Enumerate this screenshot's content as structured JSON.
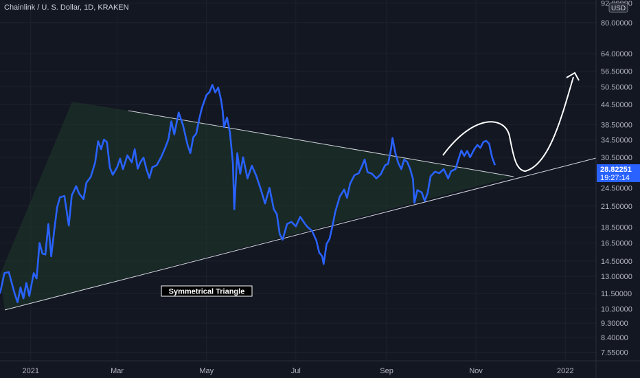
{
  "header": {
    "title": "Chainlink / U. S. Dollar, 1D, KRAKEN"
  },
  "colors": {
    "background": "#131722",
    "grid": "#1e222d",
    "series": "#2962ff",
    "trendline": "#d1d4dc",
    "triangle_fill": "#1f3a2a",
    "price_label_bg": "#2962ff"
  },
  "chart_data": {
    "type": "line",
    "symbol": "Chainlink / U. S. Dollar",
    "interval": "1D",
    "exchange": "KRAKEN",
    "currency_badge": "USD",
    "y_scale": "log",
    "ylim": [
      7.1,
      94
    ],
    "xlim": [
      "2020-12-11",
      "2022-01-22"
    ],
    "y_ticks": [
      "92.00000",
      "80.00000",
      "64.00000",
      "56.50000",
      "50.50000",
      "44.50000",
      "38.50000",
      "34.50000",
      "30.50000",
      "24.50000",
      "21.50000",
      "18.50000",
      "16.50000",
      "14.50000",
      "13.00000",
      "11.50000",
      "10.30000",
      "9.30000",
      "8.40000",
      "7.55000"
    ],
    "x_ticks": [
      {
        "label": "2021",
        "date": "2021-01-01"
      },
      {
        "label": "Mar",
        "date": "2021-03-01"
      },
      {
        "label": "May",
        "date": "2021-05-01"
      },
      {
        "label": "Jul",
        "date": "2021-07-01"
      },
      {
        "label": "Sep",
        "date": "2021-09-01"
      },
      {
        "label": "Nov",
        "date": "2021-11-01"
      },
      {
        "label": "2022",
        "date": "2022-01-01"
      }
    ],
    "last_price": "28.82251",
    "countdown": "19:27:14",
    "annotation": "Symmetrical Triangle",
    "series": [
      {
        "points": [
          [
            "2020-12-11",
            11.5
          ],
          [
            "2020-12-14",
            13.3
          ],
          [
            "2020-12-17",
            13.4
          ],
          [
            "2020-12-19",
            12.4
          ],
          [
            "2020-12-21",
            11.5
          ],
          [
            "2020-12-23",
            10.8
          ],
          [
            "2020-12-25",
            12.0
          ],
          [
            "2020-12-27",
            11.1
          ],
          [
            "2020-12-29",
            12.4
          ],
          [
            "2020-12-31",
            11.3
          ],
          [
            "2021-01-03",
            13.3
          ],
          [
            "2021-01-05",
            12.8
          ],
          [
            "2021-01-07",
            16.5
          ],
          [
            "2021-01-09",
            15.3
          ],
          [
            "2021-01-11",
            15.2
          ],
          [
            "2021-01-13",
            18.9
          ],
          [
            "2021-01-15",
            15.0
          ],
          [
            "2021-01-17",
            18.0
          ],
          [
            "2021-01-19",
            21.3
          ],
          [
            "2021-01-21",
            22.9
          ],
          [
            "2021-01-24",
            23.1
          ],
          [
            "2021-01-27",
            18.7
          ],
          [
            "2021-01-29",
            23.2
          ],
          [
            "2021-02-01",
            24.8
          ],
          [
            "2021-02-03",
            23.5
          ],
          [
            "2021-02-06",
            22.6
          ],
          [
            "2021-02-08",
            25.4
          ],
          [
            "2021-02-11",
            26.5
          ],
          [
            "2021-02-14",
            29.4
          ],
          [
            "2021-02-16",
            34.2
          ],
          [
            "2021-02-18",
            32.3
          ],
          [
            "2021-02-20",
            34.6
          ],
          [
            "2021-02-22",
            34.0
          ],
          [
            "2021-02-24",
            28.3
          ],
          [
            "2021-02-26",
            26.9
          ],
          [
            "2021-03-01",
            28.4
          ],
          [
            "2021-03-03",
            30.2
          ],
          [
            "2021-03-05",
            28.0
          ],
          [
            "2021-03-08",
            30.9
          ],
          [
            "2021-03-11",
            29.4
          ],
          [
            "2021-03-13",
            32.3
          ],
          [
            "2021-03-15",
            28.1
          ],
          [
            "2021-03-17",
            29.5
          ],
          [
            "2021-03-19",
            30.4
          ],
          [
            "2021-03-21",
            28.0
          ],
          [
            "2021-03-23",
            26.3
          ],
          [
            "2021-03-25",
            28.4
          ],
          [
            "2021-03-28",
            28.8
          ],
          [
            "2021-03-31",
            30.5
          ],
          [
            "2021-04-03",
            32.8
          ],
          [
            "2021-04-05",
            34.7
          ],
          [
            "2021-04-07",
            39.4
          ],
          [
            "2021-04-09",
            35.9
          ],
          [
            "2021-04-12",
            42.0
          ],
          [
            "2021-04-15",
            38.3
          ],
          [
            "2021-04-18",
            33.4
          ],
          [
            "2021-04-20",
            31.4
          ],
          [
            "2021-04-22",
            35.2
          ],
          [
            "2021-04-24",
            36.1
          ],
          [
            "2021-04-26",
            40.0
          ],
          [
            "2021-04-28",
            43.6
          ],
          [
            "2021-05-01",
            47.6
          ],
          [
            "2021-05-03",
            48.6
          ],
          [
            "2021-05-05",
            51.2
          ],
          [
            "2021-05-07",
            48.5
          ],
          [
            "2021-05-09",
            50.2
          ],
          [
            "2021-05-11",
            45.9
          ],
          [
            "2021-05-12",
            42.6
          ],
          [
            "2021-05-13",
            37.8
          ],
          [
            "2021-05-15",
            40.5
          ],
          [
            "2021-05-17",
            36.5
          ],
          [
            "2021-05-19",
            29.3
          ],
          [
            "2021-05-20",
            21.0
          ],
          [
            "2021-05-22",
            31.4
          ],
          [
            "2021-05-24",
            27.1
          ],
          [
            "2021-05-26",
            30.5
          ],
          [
            "2021-05-29",
            26.2
          ],
          [
            "2021-06-01",
            28.7
          ],
          [
            "2021-06-04",
            26.7
          ],
          [
            "2021-06-07",
            24.3
          ],
          [
            "2021-06-10",
            21.9
          ],
          [
            "2021-06-13",
            24.5
          ],
          [
            "2021-06-16",
            21.0
          ],
          [
            "2021-06-18",
            20.3
          ],
          [
            "2021-06-20",
            17.6
          ],
          [
            "2021-06-22",
            16.9
          ],
          [
            "2021-06-25",
            18.9
          ],
          [
            "2021-06-28",
            19.2
          ],
          [
            "2021-07-01",
            18.6
          ],
          [
            "2021-07-04",
            19.9
          ],
          [
            "2021-07-07",
            19.0
          ],
          [
            "2021-07-09",
            18.5
          ],
          [
            "2021-07-12",
            18.0
          ],
          [
            "2021-07-15",
            16.8
          ],
          [
            "2021-07-17",
            15.4
          ],
          [
            "2021-07-19",
            15.0
          ],
          [
            "2021-07-20",
            14.2
          ],
          [
            "2021-07-22",
            16.4
          ],
          [
            "2021-07-24",
            17.0
          ],
          [
            "2021-07-26",
            18.6
          ],
          [
            "2021-07-28",
            20.7
          ],
          [
            "2021-07-31",
            23.0
          ],
          [
            "2021-08-03",
            24.2
          ],
          [
            "2021-08-05",
            22.8
          ],
          [
            "2021-08-07",
            25.2
          ],
          [
            "2021-08-10",
            26.8
          ],
          [
            "2021-08-13",
            27.2
          ],
          [
            "2021-08-15",
            28.5
          ],
          [
            "2021-08-17",
            30.0
          ],
          [
            "2021-08-19",
            27.4
          ],
          [
            "2021-08-22",
            27.1
          ],
          [
            "2021-08-25",
            26.2
          ],
          [
            "2021-08-28",
            27.0
          ],
          [
            "2021-08-31",
            28.8
          ],
          [
            "2021-09-02",
            29.1
          ],
          [
            "2021-09-04",
            32.3
          ],
          [
            "2021-09-05",
            35.0
          ],
          [
            "2021-09-07",
            31.4
          ],
          [
            "2021-09-09",
            29.2
          ],
          [
            "2021-09-11",
            28.0
          ],
          [
            "2021-09-13",
            30.0
          ],
          [
            "2021-09-15",
            29.5
          ],
          [
            "2021-09-17",
            28.1
          ],
          [
            "2021-09-19",
            26.1
          ],
          [
            "2021-09-20",
            22.0
          ],
          [
            "2021-09-22",
            24.1
          ],
          [
            "2021-09-25",
            23.7
          ],
          [
            "2021-09-27",
            22.3
          ],
          [
            "2021-09-29",
            23.6
          ],
          [
            "2021-10-01",
            26.6
          ],
          [
            "2021-10-04",
            27.5
          ],
          [
            "2021-10-07",
            27.2
          ],
          [
            "2021-10-10",
            28.0
          ],
          [
            "2021-10-13",
            26.2
          ],
          [
            "2021-10-15",
            27.6
          ],
          [
            "2021-10-18",
            28.0
          ],
          [
            "2021-10-20",
            30.0
          ],
          [
            "2021-10-22",
            32.0
          ],
          [
            "2021-10-24",
            30.8
          ],
          [
            "2021-10-26",
            31.9
          ],
          [
            "2021-10-28",
            30.5
          ],
          [
            "2021-10-31",
            32.4
          ],
          [
            "2021-11-02",
            33.3
          ],
          [
            "2021-11-04",
            32.6
          ],
          [
            "2021-11-06",
            34.0
          ],
          [
            "2021-11-08",
            34.3
          ],
          [
            "2021-11-10",
            33.6
          ],
          [
            "2021-11-12",
            30.5
          ],
          [
            "2021-11-14",
            28.82
          ]
        ]
      }
    ]
  }
}
